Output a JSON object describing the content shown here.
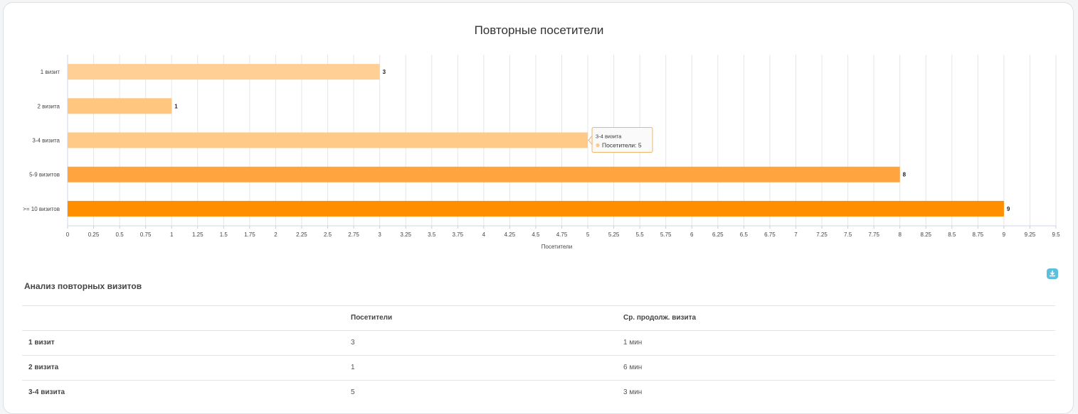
{
  "chart": {
    "title": "Повторные посетители"
  },
  "chart_data": {
    "type": "bar",
    "orientation": "horizontal",
    "title": "Повторные посетители",
    "xlabel": "Посетители",
    "ylabel": "",
    "categories": [
      "1 визит",
      "2 визита",
      "3-4 визита",
      "5-9 визитов",
      ">= 10 визитов"
    ],
    "series": [
      {
        "name": "Посетители",
        "values": [
          3,
          1,
          5,
          8,
          9
        ]
      }
    ],
    "xlim": [
      0,
      9.5
    ],
    "x_tick_step": 0.25,
    "bar_colors": [
      "#ffcf95",
      "#ffc680",
      "#ffca88",
      "#ffa43e",
      "#ff8f00"
    ],
    "grid": true,
    "data_labels": true,
    "tooltip": {
      "category": "3-4 визита",
      "series": "Посетители",
      "value": 5
    }
  },
  "table": {
    "title": "Анализ повторных визитов",
    "headers": [
      "",
      "Посетители",
      "Ср. продолж. визита"
    ],
    "rows": [
      [
        "1 визит",
        "3",
        "1 мин"
      ],
      [
        "2 визита",
        "1",
        "6 мин"
      ],
      [
        "3-4 визита",
        "5",
        "3 мин"
      ]
    ]
  },
  "download_icon": "download-icon",
  "colors": {
    "accent": "#5bc0de",
    "bar_max": "#ff8f00"
  }
}
